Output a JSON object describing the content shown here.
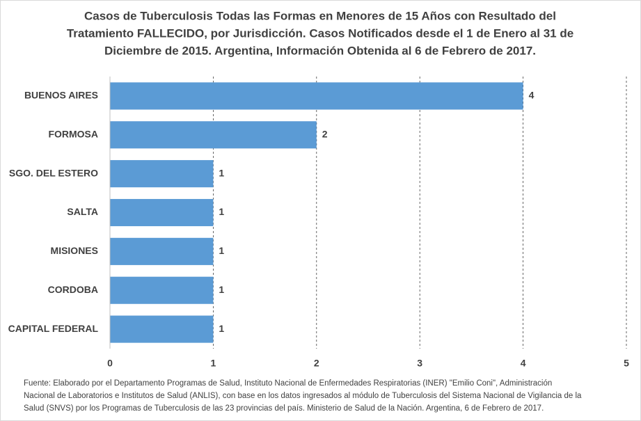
{
  "chart_data": {
    "type": "bar",
    "orientation": "horizontal",
    "title": [
      "Casos de Tuberculosis Todas las Formas en Menores de 15 Años con Resultado del",
      "Tratamiento FALLECIDO, por Jurisdicción. Casos Notificados desde el 1 de Enero al 31 de",
      "Diciembre de 2015. Argentina, Información Obtenida al 6 de Febrero de 2017."
    ],
    "categories": [
      "BUENOS AIRES",
      "FORMOSA",
      "SGO. DEL ESTERO",
      "SALTA",
      "MISIONES",
      "CORDOBA",
      "CAPITAL FEDERAL"
    ],
    "values": [
      4,
      2,
      1,
      1,
      1,
      1,
      1
    ],
    "color": "#5b9bd5",
    "xlim": [
      0,
      5
    ],
    "xticks": [
      0,
      1,
      2,
      3,
      4,
      5
    ],
    "grid": true,
    "source": [
      "Fuente: Elaborado por el Departamento Programas de Salud, Instituto Nacional de Enfermedades Respiratorias (INER) \"Emilio Coni\", Administración",
      "Nacional de Laboratorios e Institutos de Salud (ANLIS), con base en los datos ingresados al módulo de Tuberculosis del Sistema Nacional de Vigilancia de la",
      "Salud (SNVS) por los Programas de Tuberculosis de las  23 provincias del país. Ministerio de Salud de la Nación. Argentina,  6 de Febrero de 2017."
    ]
  }
}
